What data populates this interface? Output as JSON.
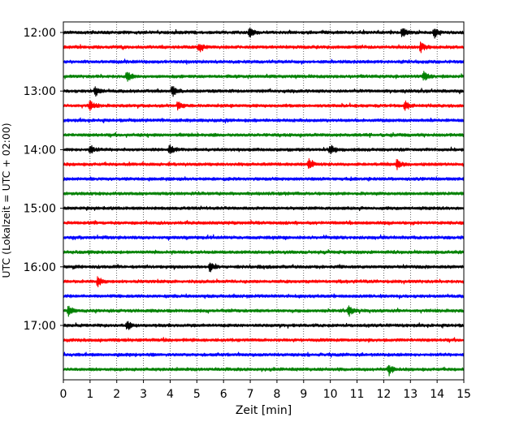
{
  "chart_data": {
    "type": "line",
    "title": "",
    "xlabel": "Zeit  [min]",
    "ylabel": "UTC (Lokalzeit = UTC + 02:00)",
    "xlim": [
      0,
      15
    ],
    "xticks": [
      "0",
      "1",
      "2",
      "3",
      "4",
      "5",
      "6",
      "7",
      "8",
      "9",
      "10",
      "11",
      "12",
      "13",
      "14",
      "15"
    ],
    "yticks": [
      "12:00",
      "13:00",
      "14:00",
      "15:00",
      "16:00",
      "17:00"
    ],
    "grid": "vertical dotted lines at each minute",
    "row_start_times": [
      "12:00",
      "12:15",
      "12:30",
      "12:45",
      "13:00",
      "13:15",
      "13:30",
      "13:45",
      "14:00",
      "14:15",
      "14:30",
      "14:45",
      "15:00",
      "15:15",
      "15:30",
      "15:45",
      "16:00",
      "16:15",
      "16:30",
      "16:45",
      "17:00",
      "17:15",
      "17:30",
      "17:45"
    ],
    "colors": [
      "#000000",
      "#ff0000",
      "#0000ff",
      "#008000"
    ],
    "events": [
      {
        "row": 0,
        "minute": 7.0
      },
      {
        "row": 0,
        "minute": 12.7
      },
      {
        "row": 0,
        "minute": 13.9
      },
      {
        "row": 1,
        "minute": 5.1
      },
      {
        "row": 1,
        "minute": 13.4
      },
      {
        "row": 3,
        "minute": 2.4
      },
      {
        "row": 3,
        "minute": 13.5
      },
      {
        "row": 4,
        "minute": 1.2
      },
      {
        "row": 4,
        "minute": 4.1
      },
      {
        "row": 5,
        "minute": 1.0
      },
      {
        "row": 5,
        "minute": 4.3
      },
      {
        "row": 5,
        "minute": 12.8
      },
      {
        "row": 8,
        "minute": 1.0
      },
      {
        "row": 8,
        "minute": 4.0
      },
      {
        "row": 8,
        "minute": 10.0
      },
      {
        "row": 9,
        "minute": 9.2
      },
      {
        "row": 9,
        "minute": 12.5
      },
      {
        "row": 16,
        "minute": 5.5
      },
      {
        "row": 17,
        "minute": 1.3
      },
      {
        "row": 19,
        "minute": 0.2
      },
      {
        "row": 19,
        "minute": 10.7
      },
      {
        "row": 20,
        "minute": 2.4
      },
      {
        "row": 23,
        "minute": 12.2
      }
    ]
  }
}
